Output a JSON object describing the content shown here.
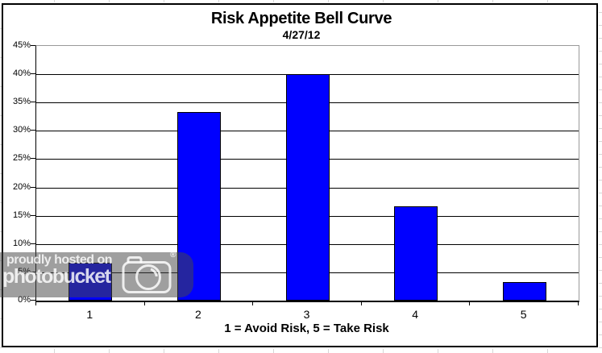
{
  "chart_data": {
    "type": "bar",
    "title": "Risk Appetite Bell Curve",
    "subtitle": "4/27/12",
    "categories": [
      "1",
      "2",
      "3",
      "4",
      "5"
    ],
    "values": [
      6.7,
      33.3,
      40.0,
      16.7,
      3.3
    ],
    "xlabel": "1 = Avoid Risk, 5 = Take Risk",
    "ylabel": "",
    "ylim": [
      0,
      45
    ],
    "ytick_step": 5,
    "ytick_labels": [
      "0%",
      "5%",
      "10%",
      "15%",
      "20%",
      "25%",
      "30%",
      "35%",
      "40%",
      "45%"
    ],
    "grid": true,
    "legend": false,
    "bar_color": "#0000ff",
    "bar_border_color": "#000000",
    "gridline_color": "#000000",
    "plot_border_color": "#9a9a9a"
  },
  "watermark": {
    "line1": "proudly hosted on",
    "line2": "photobucket",
    "registered_symbol": "®",
    "overlay_color": "rgba(70,70,70,0.52)",
    "text_color": "rgba(255,255,255,0.82)"
  }
}
